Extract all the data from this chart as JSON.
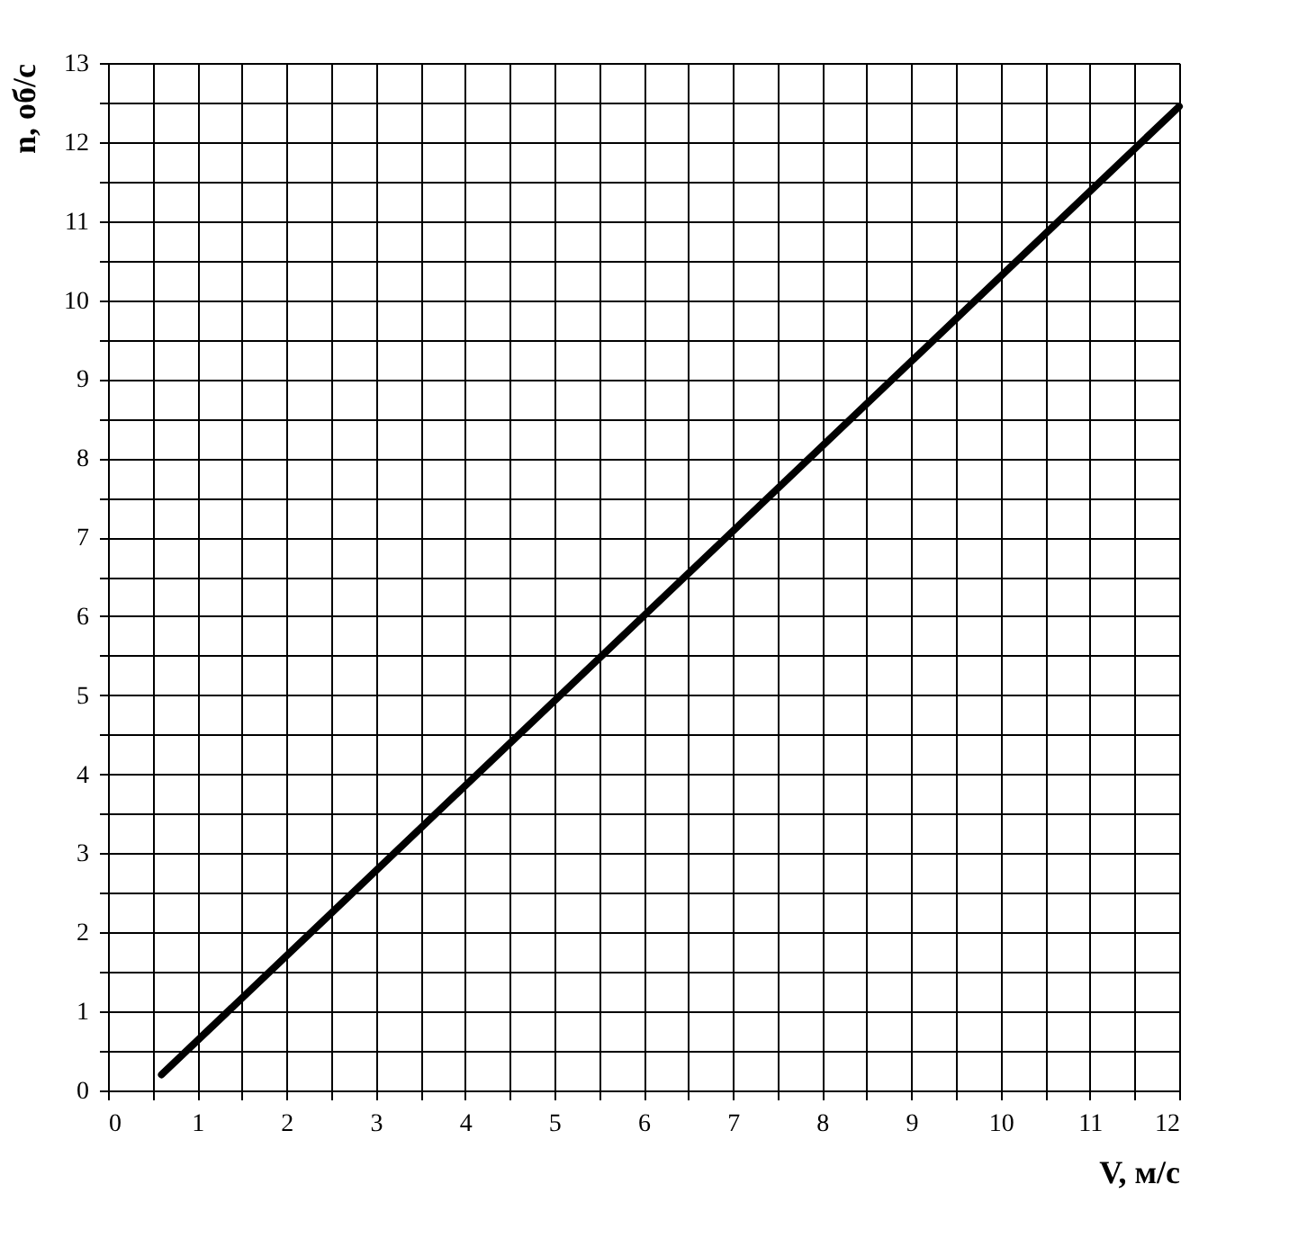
{
  "chart_data": {
    "type": "line",
    "xlabel": "V, м/с",
    "ylabel": "n, об/с",
    "x": [
      0.6,
      12
    ],
    "series": [
      {
        "color": "#000000",
        "values": [
          0.2,
          12.45
        ]
      }
    ],
    "xlim": [
      0,
      12
    ],
    "ylim": [
      0,
      13
    ],
    "xticks": [
      0,
      {
        "value": 0.5,
        "label": null
      },
      1,
      {
        "value": 1.5,
        "label": null
      },
      2,
      {
        "value": 2.5,
        "label": null
      },
      3,
      {
        "value": 3.5,
        "label": null
      },
      4,
      {
        "value": 4.5,
        "label": null
      },
      5,
      {
        "value": 5.5,
        "label": null
      },
      6,
      {
        "value": 6.5,
        "label": null
      },
      7,
      {
        "value": 7.5,
        "label": null
      },
      8,
      {
        "value": 8.5,
        "label": null
      },
      9,
      {
        "value": 9.5,
        "label": null
      },
      10,
      {
        "value": 10.5,
        "label": null
      },
      11,
      {
        "value": 11.5,
        "label": null
      },
      12
    ],
    "yticks": [
      0,
      {
        "value": 0.5,
        "label": null
      },
      1,
      {
        "value": 1.5,
        "label": null
      },
      2,
      {
        "value": 2.5,
        "label": null
      },
      3,
      {
        "value": 3.5,
        "label": null
      },
      4,
      {
        "value": 4.5,
        "label": null
      },
      5,
      {
        "value": 5.5,
        "label": null
      },
      6,
      {
        "value": 6.5,
        "label": null
      },
      7,
      {
        "value": 7.5,
        "label": null
      },
      8,
      {
        "value": 8.5,
        "label": null
      },
      9,
      {
        "value": 9.5,
        "label": null
      },
      10,
      {
        "value": 10.5,
        "label": null
      },
      11,
      {
        "value": 11.5,
        "label": null
      },
      12,
      {
        "value": 12.5,
        "label": null
      },
      13
    ],
    "grid": true,
    "marker": "none",
    "line_style": "solid"
  }
}
